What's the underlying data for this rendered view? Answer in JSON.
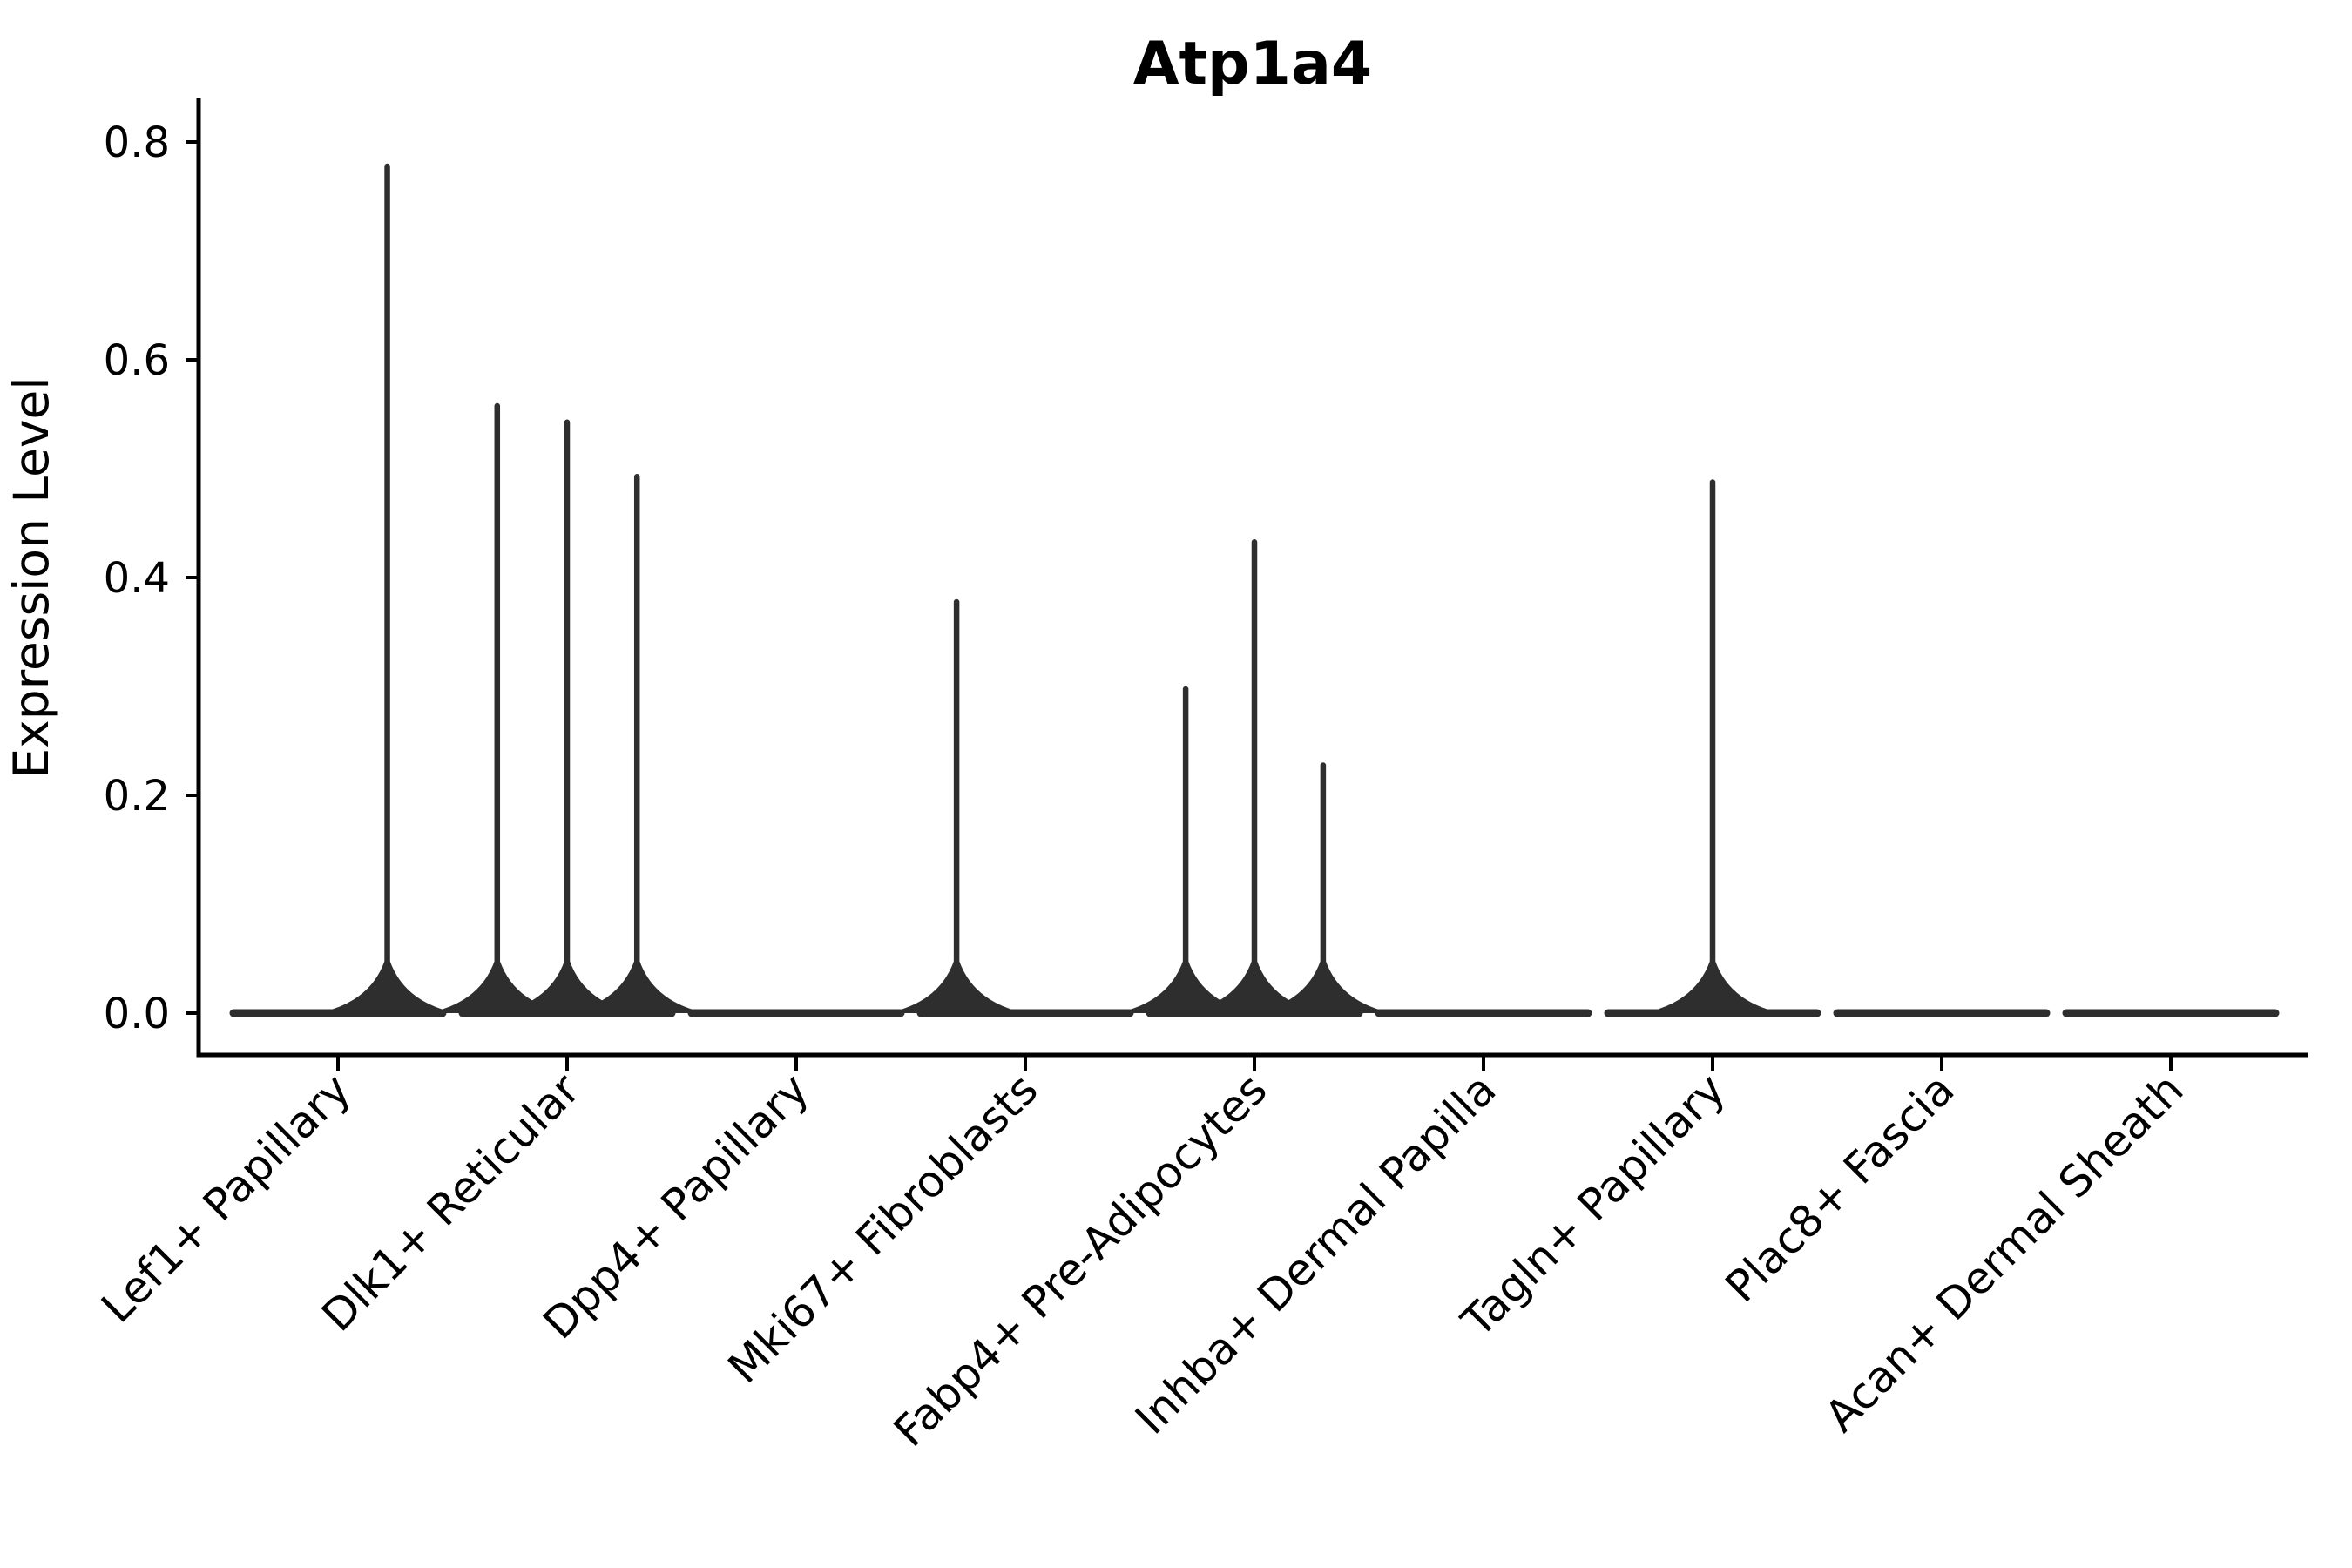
{
  "figure": {
    "title": "Atp1a4"
  },
  "chart_data": {
    "type": "violin",
    "title": "Atp1a4",
    "xlabel": "",
    "ylabel": "Expression Level",
    "ylim": [
      -0.04,
      0.84
    ],
    "yticks": [
      0,
      0.2,
      0.4,
      0.6,
      0.8
    ],
    "ytick_labels": [
      "0.0",
      "0.2",
      "0.4",
      "0.6",
      "0.8"
    ],
    "grid": false,
    "legend_position": "none",
    "x_tick_label_rotation_deg": 45,
    "categories": [
      "Lef1+ Papillary",
      "Dlk1+ Reticular",
      "Dpp4+ Papillary",
      "Mki67+ Fibroblasts",
      "Fabp4+ Pre-Adipocytes",
      "Inhba+ Dermal Papilla",
      "Tagln+ Papillary",
      "Plac8+ Fascia",
      "Acan+ Dermal Sheath"
    ],
    "violins": [
      {
        "category": "Lef1+ Papillary",
        "base_value": 0,
        "base_width_frac": 0.9,
        "spikes": [
          {
            "offset_frac": 0.215,
            "peak": 0.78
          }
        ]
      },
      {
        "category": "Dlk1+ Reticular",
        "base_value": 0,
        "base_width_frac": 0.9,
        "spikes": [
          {
            "offset_frac": -0.305,
            "peak": 0.56
          },
          {
            "offset_frac": 0,
            "peak": 0.545
          },
          {
            "offset_frac": 0.305,
            "peak": 0.495
          }
        ]
      },
      {
        "category": "Dpp4+ Papillary",
        "base_value": 0,
        "base_width_frac": 0.9,
        "spikes": []
      },
      {
        "category": "Mki67+ Fibroblasts",
        "base_value": 0,
        "base_width_frac": 0.9,
        "spikes": [
          {
            "offset_frac": -0.3,
            "peak": 0.38
          }
        ]
      },
      {
        "category": "Fabp4+ Pre-Adipocytes",
        "base_value": 0,
        "base_width_frac": 0.9,
        "spikes": [
          {
            "offset_frac": -0.3,
            "peak": 0.3
          },
          {
            "offset_frac": 0,
            "peak": 0.435
          },
          {
            "offset_frac": 0.3,
            "peak": 0.23
          }
        ]
      },
      {
        "category": "Inhba+ Dermal Papilla",
        "base_value": 0,
        "base_width_frac": 0.9,
        "spikes": []
      },
      {
        "category": "Tagln+ Papillary",
        "base_value": 0,
        "base_width_frac": 0.9,
        "spikes": [
          {
            "offset_frac": 0,
            "peak": 0.49
          }
        ]
      },
      {
        "category": "Plac8+ Fascia",
        "base_value": 0,
        "base_width_frac": 0.9,
        "spikes": []
      },
      {
        "category": "Acan+ Dermal Sheath",
        "base_value": 0,
        "base_width_frac": 0.9,
        "spikes": []
      }
    ],
    "colors": {
      "violin": "#2e2e2e",
      "axis": "#000000",
      "text": "#000000",
      "background": "#ffffff"
    }
  }
}
